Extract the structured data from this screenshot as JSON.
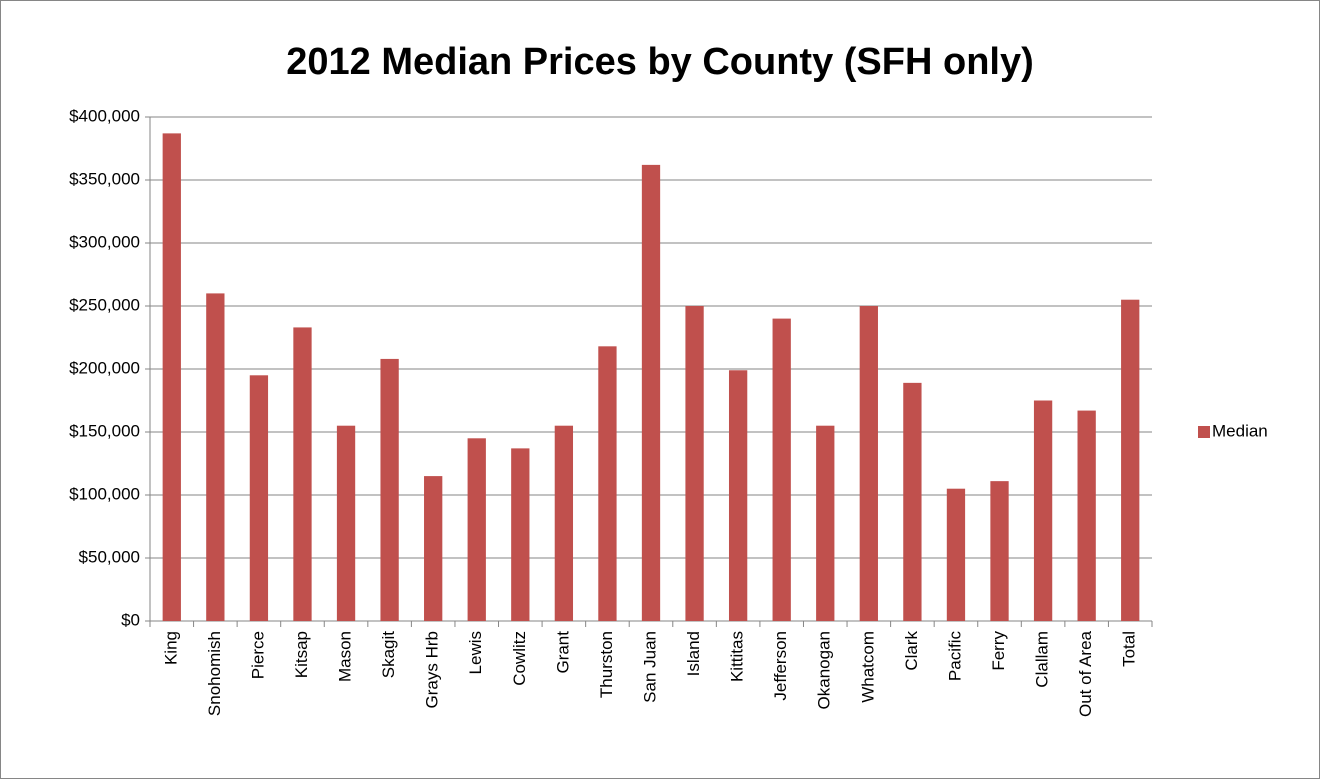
{
  "chart_data": {
    "type": "bar",
    "title": "2012 Median Prices by County (SFH only)",
    "categories": [
      "King",
      "Snohomish",
      "Pierce",
      "Kitsap",
      "Mason",
      "Skagit",
      "Grays Hrb",
      "Lewis",
      "Cowlitz",
      "Grant",
      "Thurston",
      "San Juan",
      "Island",
      "Kittitas",
      "Jefferson",
      "Okanogan",
      "Whatcom",
      "Clark",
      "Pacific",
      "Ferry",
      "Clallam",
      "Out of Area",
      "Total"
    ],
    "series": [
      {
        "name": "Median",
        "color": "#c0504d",
        "values": [
          387000,
          260000,
          195000,
          233000,
          155000,
          208000,
          115000,
          145000,
          137000,
          155000,
          218000,
          362000,
          250000,
          199000,
          240000,
          155000,
          250000,
          189000,
          105000,
          111000,
          175000,
          167000,
          255000
        ]
      }
    ],
    "ylim": [
      0,
      400000
    ],
    "yticks": [
      {
        "value": 0,
        "label": "$0"
      },
      {
        "value": 50000,
        "label": "$50,000"
      },
      {
        "value": 100000,
        "label": "$100,000"
      },
      {
        "value": 150000,
        "label": "$150,000"
      },
      {
        "value": 200000,
        "label": "$200,000"
      },
      {
        "value": 250000,
        "label": "$250,000"
      },
      {
        "value": 300000,
        "label": "$300,000"
      },
      {
        "value": 350000,
        "label": "$350,000"
      },
      {
        "value": 400000,
        "label": "$400,000"
      }
    ],
    "grid": true,
    "legend": "right"
  }
}
